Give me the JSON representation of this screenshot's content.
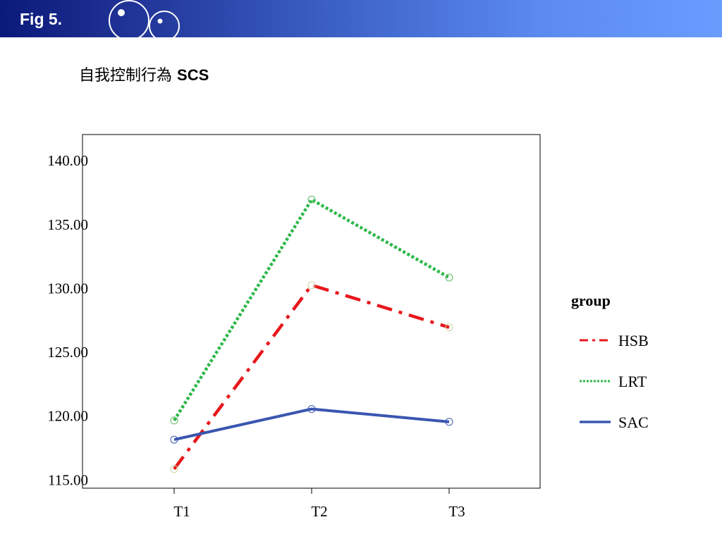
{
  "header": {
    "fig_label": "Fig 5."
  },
  "slide": {
    "title_cn": "自我控制行為",
    "title_en": "SCS"
  },
  "colors": {
    "HSB": "#e8171b",
    "LRT": "#2db84a",
    "SAC": "#3a56b0",
    "HSB_marker": "#ccd4a0",
    "LRT_marker": "#5ab862",
    "SAC_marker": "#3a56b0",
    "header_start": "#0a1a7a",
    "header_end": "#6a9cff"
  },
  "chart_data": {
    "type": "line",
    "title": "",
    "xlabel": "",
    "ylabel": "",
    "categories": [
      "T1",
      "T2",
      "T3"
    ],
    "ylim": [
      114.3,
      142.0
    ],
    "yticks": [
      115,
      120,
      125,
      130,
      135,
      140
    ],
    "ytick_labels": [
      "115.00",
      "120.00",
      "125.00",
      "130.00",
      "135.00",
      "140.00"
    ],
    "grid": false,
    "legend_title": "group",
    "legend_position": "right",
    "series": [
      {
        "name": "HSB",
        "values": [
          115.8,
          130.2,
          126.9
        ],
        "style": "dashdot"
      },
      {
        "name": "LRT",
        "values": [
          119.6,
          136.9,
          130.8
        ],
        "style": "dotted"
      },
      {
        "name": "SAC",
        "values": [
          118.1,
          120.5,
          119.5
        ],
        "style": "solid"
      }
    ]
  }
}
